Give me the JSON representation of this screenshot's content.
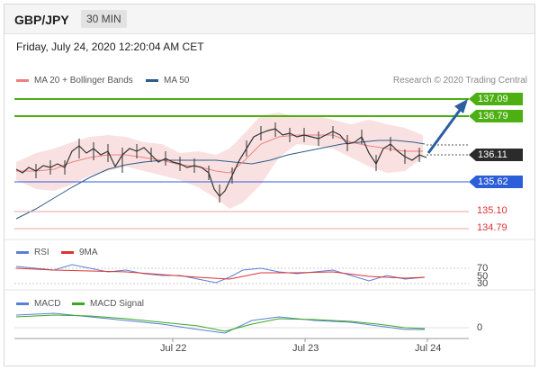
{
  "header": {
    "symbol": "GBP/JPY",
    "timeframe": "30 MIN"
  },
  "timestamp": "Friday, July 24, 2020 12:20:04 AM CET",
  "credit": "Research © 2020 Trading Central",
  "legend": {
    "ma_bb": "MA 20 + Bollinger Bands",
    "ma50": "MA 50",
    "rsi": "RSI",
    "rsi_ma": "9MA",
    "macd": "MACD",
    "macd_signal": "MACD Signal"
  },
  "levels": {
    "target2": "137.09",
    "target1": "136.79",
    "current": "136.11",
    "pivot": "135.62",
    "support1": "135.10",
    "support2": "134.79"
  },
  "rsi_ticks": [
    "70",
    "50",
    "30"
  ],
  "macd_ticks": [
    "0"
  ],
  "x_labels": [
    "Jul 22",
    "Jul 23",
    "Jul 24"
  ],
  "colors": {
    "target": "#4caf12",
    "pivot": "#2b5ed8",
    "current": "#2b2b2b",
    "support": "#e03232",
    "ma20_bb": "#f08080",
    "ma50": "#2e5c8a",
    "arrow": "#2b5fa0",
    "macd": "#5a7fd6",
    "macd_signal": "#3aa820"
  },
  "chart_data": [
    {
      "type": "candlestick",
      "title": "GBP/JPY 30 MIN",
      "x_labels": [
        "Jul 22",
        "Jul 23",
        "Jul 24"
      ],
      "horizontal_levels": [
        137.09,
        136.79,
        136.11,
        135.62,
        135.1,
        134.79
      ],
      "series": [
        {
          "name": "MA 20 + Bollinger Bands"
        },
        {
          "name": "MA 50"
        }
      ],
      "annotation": "upward arrow toward 137.09"
    },
    {
      "type": "line",
      "series": [
        {
          "name": "RSI"
        },
        {
          "name": "9MA"
        }
      ],
      "y_ticks": [
        70,
        50,
        30
      ]
    },
    {
      "type": "line",
      "series": [
        {
          "name": "MACD"
        },
        {
          "name": "MACD Signal"
        }
      ],
      "y_ticks": [
        0
      ]
    }
  ]
}
